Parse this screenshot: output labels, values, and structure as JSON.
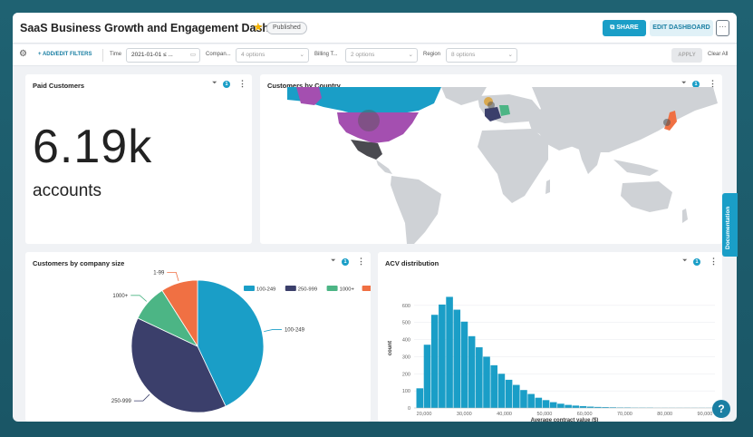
{
  "header": {
    "title": "SaaS Business Growth and Engagement Dashboard",
    "badge": "Published",
    "share_label": "SHARE",
    "edit_label": "EDIT DASHBOARD",
    "more_label": "···"
  },
  "filters": {
    "add_label": "ADD/EDIT FILTERS",
    "items": [
      {
        "label": "Time",
        "value": "2021-01-01 ≤ ..."
      },
      {
        "label": "Compan...",
        "value": "4 options"
      },
      {
        "label": "Billing T...",
        "value": "2 options"
      },
      {
        "label": "Region",
        "value": "8 options"
      }
    ],
    "apply_label": "APPLY",
    "clear_label": "Clear All"
  },
  "cards": {
    "paid": {
      "title": "Paid Customers",
      "value": "6.19k",
      "unit": "accounts",
      "filter_count": "1"
    },
    "country": {
      "title": "Customers by Country",
      "filter_count": "1"
    },
    "size": {
      "title": "Customers by company size",
      "filter_count": "1"
    },
    "acv": {
      "title": "ACV distribution",
      "filter_count": "1"
    }
  },
  "documentation_label": "Documentation",
  "help_label": "?",
  "colors": {
    "accent": "#1a9ec7",
    "navy": "#3b3f6b",
    "green": "#4cb585",
    "orange": "#f07043"
  },
  "chart_data": [
    {
      "type": "pie",
      "title": "Customers by company size",
      "legend_position": "top-right",
      "categories": [
        "100-249",
        "250-999",
        "1000+",
        "1-99"
      ],
      "values": [
        43,
        39,
        9,
        9
      ],
      "colors": [
        "#1a9ec7",
        "#3b3f6b",
        "#4cb585",
        "#f07043"
      ],
      "slice_labels": [
        "100-249",
        "250-999",
        "1000+",
        "1-99"
      ]
    },
    {
      "type": "bar",
      "title": "ACV distribution",
      "xlabel": "Average contract value ($)",
      "ylabel": "count",
      "ylim": [
        0,
        700
      ],
      "yticks": [
        0,
        100,
        200,
        300,
        400,
        500,
        600
      ],
      "xlim": [
        17500,
        92500
      ],
      "xticks": [
        20000,
        30000,
        40000,
        50000,
        60000,
        70000,
        80000,
        90000
      ],
      "xtick_labels": [
        "20,000",
        "30,000",
        "40,000",
        "50,000",
        "60,000",
        "70,000",
        "80,000",
        "90,000"
      ],
      "bin_width": 1850,
      "bin_starts": [
        18000,
        19850,
        21700,
        23550,
        25400,
        27250,
        29100,
        30950,
        32800,
        34650,
        36500,
        38350,
        40200,
        42050,
        43900,
        45750,
        47600,
        49450,
        51300,
        53150,
        55000,
        56850,
        58700,
        60550,
        62400,
        64250,
        66100,
        67950,
        69800,
        71650,
        73500,
        75350,
        77200,
        79050,
        80900,
        82750,
        84600,
        86450,
        88300,
        90150
      ],
      "values": [
        115,
        370,
        545,
        605,
        650,
        575,
        505,
        420,
        355,
        300,
        250,
        200,
        165,
        135,
        105,
        82,
        60,
        46,
        34,
        25,
        18,
        14,
        11,
        8,
        6,
        5,
        4,
        3,
        3,
        2,
        2,
        2,
        1,
        1,
        1,
        1,
        1,
        1,
        1,
        1
      ],
      "color": "#1a9ec7"
    }
  ]
}
